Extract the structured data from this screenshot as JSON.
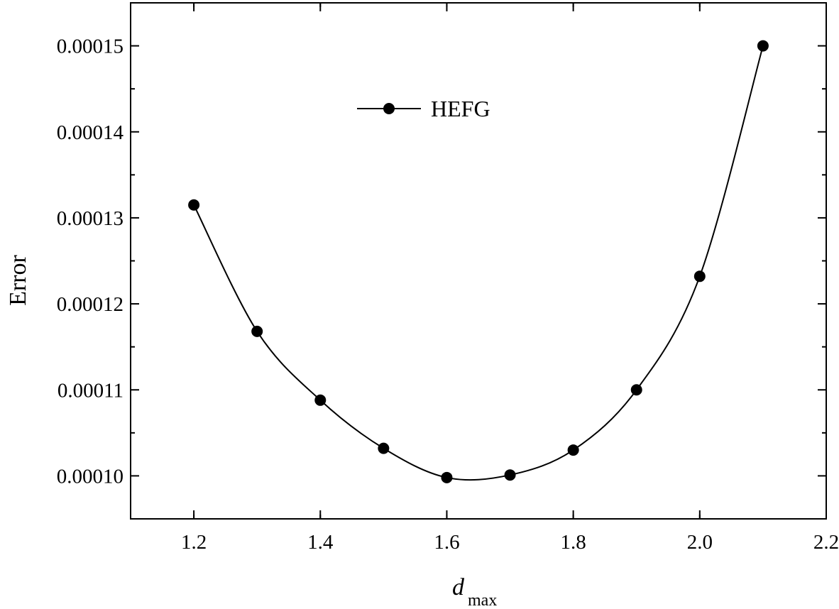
{
  "chart_data": {
    "type": "line",
    "title": "",
    "xlabel_main": "d",
    "xlabel_sub": "max",
    "ylabel": "Error",
    "xlim": [
      1.1,
      2.2
    ],
    "ylim": [
      9.5e-05,
      0.000155
    ],
    "xticks": [
      1.2,
      1.4,
      1.6,
      1.8,
      2.0,
      2.2
    ],
    "xtick_labels": [
      "1.2",
      "1.4",
      "1.6",
      "1.8",
      "2.0",
      "2.2"
    ],
    "yticks": [
      0.0001,
      0.00011,
      0.00012,
      0.00013,
      0.00014,
      0.00015
    ],
    "ytick_labels": [
      "0.00010",
      "0.00011",
      "0.00012",
      "0.00013",
      "0.00014",
      "0.00015"
    ],
    "grid": false,
    "legend_position": "top-left",
    "series": [
      {
        "name": "HEFG",
        "color": "#000000",
        "marker": "circle",
        "x": [
          1.2,
          1.3,
          1.4,
          1.5,
          1.6,
          1.7,
          1.8,
          1.9,
          2.0,
          2.1
        ],
        "y": [
          0.0001315,
          0.0001168,
          0.0001088,
          0.0001032,
          9.98e-05,
          0.0001001,
          0.000103,
          0.00011,
          0.0001232,
          0.00015
        ]
      }
    ]
  }
}
